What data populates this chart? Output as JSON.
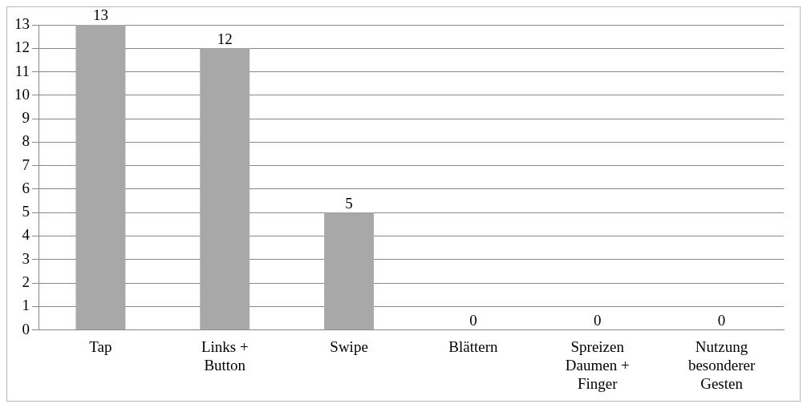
{
  "chart_data": {
    "type": "bar",
    "categories": [
      "Tap",
      "Links + Button",
      "Swipe",
      "Blättern",
      "Spreizen Daumen + Finger",
      "Nutzung besonderer Gesten"
    ],
    "values": [
      13,
      12,
      5,
      0,
      0,
      0
    ],
    "color": "#a8a8a8",
    "ylim": [
      0,
      13
    ],
    "yticks": [
      0,
      1,
      2,
      3,
      4,
      5,
      6,
      7,
      8,
      9,
      10,
      11,
      12,
      13
    ],
    "grid": "y",
    "data_labels": true
  }
}
